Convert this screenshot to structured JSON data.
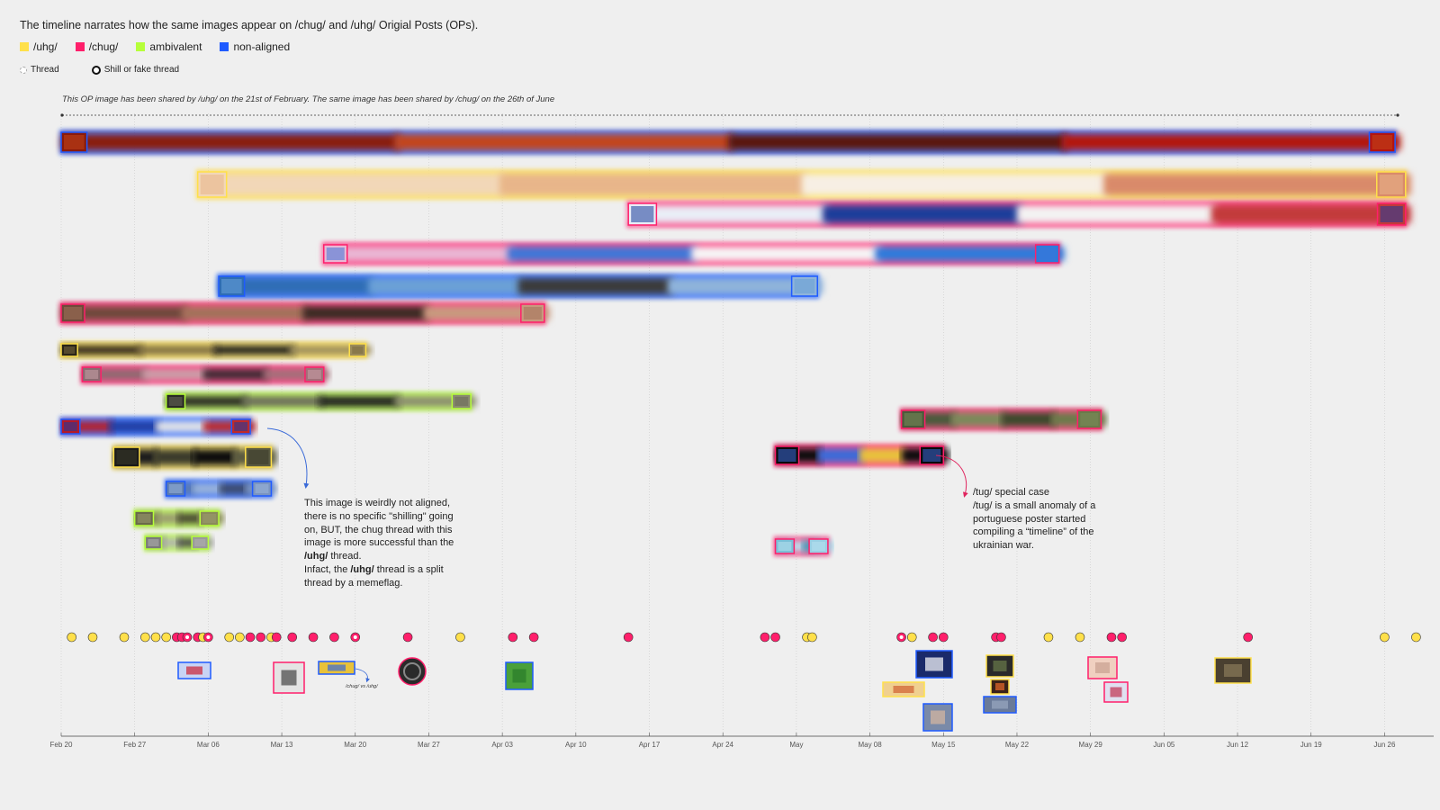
{
  "intro": "The timeline narrates how the same images appear on /chug/ and /uhg/ Origial Posts (OPs).",
  "legend": [
    {
      "label": "/uhg/",
      "color": "#ffe04a"
    },
    {
      "label": "/chug/",
      "color": "#ff1f6b"
    },
    {
      "label": "ambivalent",
      "color": "#b6ff3a"
    },
    {
      "label": "non-aligned",
      "color": "#1f5bff"
    }
  ],
  "thread_legend": {
    "thread": "Thread",
    "shill": "Shill or fake thread"
  },
  "caption": "This OP image has been shared by /uhg/ on the 21st of February. The same image has been shared by /chug/ on the 26th of June",
  "annotations": {
    "left_parts": [
      "This image is weirdly not aligned, there is no specific \"shilling\" going on, BUT, the chug thread with this image is more successful than the ",
      "/uhg/",
      " thread.\nInfact, the ",
      "/uhg/",
      " thread is a split thread by a memeflag."
    ],
    "right": "/tug/ special case\n/tug/ is a small anomaly of a portuguese poster started compiling a “timeline” of the ukrainian war.",
    "inline_label": "/chug/ vs /uhg/"
  },
  "chart_data": {
    "type": "timeline",
    "x_ticks": [
      "Feb 20",
      "Feb 27",
      "Mar 06",
      "Mar 13",
      "Mar 20",
      "Mar 27",
      "Apr 03",
      "Apr 10",
      "Apr 17",
      "Apr 24",
      "May",
      "May 08",
      "May 15",
      "May 22",
      "May 29",
      "Jun 05",
      "Jun 12",
      "Jun 19",
      "Jun 26"
    ],
    "colors": {
      "uhg": "#ffe04a",
      "chug": "#ff1f6b",
      "ambivalent": "#b6ff3a",
      "non_aligned": "#1f5bff"
    },
    "spans": [
      {
        "start_day": 0,
        "end_day": 127,
        "group": "non_aligned",
        "tones": [
          "#8a1a0a",
          "#c2451a",
          "#5a1208",
          "#b3140f"
        ]
      },
      {
        "start_day": 13,
        "end_day": 128,
        "group": "uhg",
        "tones": [
          "#f2d7b8",
          "#e8b58a",
          "#f7efe4",
          "#d98a6a"
        ]
      },
      {
        "start_day": 54,
        "end_day": 128,
        "group": "chug",
        "tones": [
          "#e9eef7",
          "#1a3c9a",
          "#f3f3f3",
          "#c23a3a"
        ]
      },
      {
        "start_day": 25,
        "end_day": 95,
        "group": "chug",
        "tones": [
          "#e9b7d4",
          "#3d77d8",
          "#f6f6f6",
          "#2b7bdc"
        ]
      },
      {
        "start_day": 15,
        "end_day": 72,
        "group": "non_aligned",
        "tones": [
          "#2e6db5",
          "#6aa0d6",
          "#3b3b3b",
          "#8fb4da"
        ]
      },
      {
        "start_day": 0,
        "end_day": 46,
        "group": "chug",
        "tones": [
          "#6e4a3a",
          "#a3725a",
          "#3a2a22",
          "#c79a7e"
        ]
      },
      {
        "start_day": 0,
        "end_day": 29,
        "group": "uhg",
        "tones": [
          "#2a2418",
          "#7a6a40",
          "#1a1a1a",
          "#9a8a5a"
        ]
      },
      {
        "start_day": 2,
        "end_day": 25,
        "group": "chug",
        "tones": [
          "#8a6a70",
          "#c8a0a8",
          "#3a2a30",
          "#a07078"
        ]
      },
      {
        "start_day": 10,
        "end_day": 39,
        "group": "ambivalent",
        "tones": [
          "#2a2a26",
          "#6a6a5a",
          "#1a1a1a",
          "#8a8a70"
        ]
      },
      {
        "start_day": 80,
        "end_day": 99,
        "group": "chug",
        "tones": [
          "#4a5a3a",
          "#7a8a5a",
          "#3a4a2a",
          "#6a7a4a"
        ]
      },
      {
        "start_day": 0,
        "end_day": 18,
        "group": "non_aligned",
        "tones": [
          "#b31a2a",
          "#1a3aa0",
          "#e6e6e6",
          "#c02a2a"
        ]
      },
      {
        "start_day": 5,
        "end_day": 20,
        "group": "uhg",
        "tones": [
          "#1a1a1a",
          "#3a3a2a",
          "#0a0a0a",
          "#5a5a40"
        ]
      },
      {
        "start_day": 68,
        "end_day": 84,
        "group": "chug",
        "tones": [
          "#0a0a0a",
          "#3a6ad8",
          "#e8c23a",
          "#0a0a0a"
        ]
      },
      {
        "start_day": 10,
        "end_day": 20,
        "group": "non_aligned",
        "tones": [
          "#5a7ab0",
          "#9ab4d8",
          "#3a4a6a",
          "#7a94c0"
        ]
      },
      {
        "start_day": 7,
        "end_day": 15,
        "group": "ambivalent",
        "tones": [
          "#6a6a4a",
          "#9a9a70",
          "#4a4a30",
          "#8a8a5a"
        ]
      },
      {
        "start_day": 8,
        "end_day": 14,
        "group": "ambivalent",
        "tones": [
          "#7a7a7a",
          "#b0b0b0",
          "#4a4a4a",
          "#9a9a9a"
        ]
      },
      {
        "start_day": 68,
        "end_day": 73,
        "group": "chug",
        "tones": [
          "#7ac0d8",
          "#b8e0ee",
          "#4a9ab8",
          "#9ad0e4"
        ]
      }
    ],
    "dots": [
      {
        "day": 1,
        "group": "uhg"
      },
      {
        "day": 3,
        "group": "uhg"
      },
      {
        "day": 6,
        "group": "uhg"
      },
      {
        "day": 8,
        "group": "uhg"
      },
      {
        "day": 9,
        "group": "uhg"
      },
      {
        "day": 10,
        "group": "uhg"
      },
      {
        "day": 11,
        "group": "chug"
      },
      {
        "day": 11.5,
        "group": "chug"
      },
      {
        "day": 12,
        "group": "chug",
        "shill": true
      },
      {
        "day": 13,
        "group": "chug"
      },
      {
        "day": 13.5,
        "group": "uhg"
      },
      {
        "day": 14,
        "group": "chug",
        "shill": true
      },
      {
        "day": 16,
        "group": "uhg"
      },
      {
        "day": 17,
        "group": "uhg"
      },
      {
        "day": 18,
        "group": "chug"
      },
      {
        "day": 19,
        "group": "chug"
      },
      {
        "day": 20,
        "group": "uhg"
      },
      {
        "day": 20.5,
        "group": "chug"
      },
      {
        "day": 22,
        "group": "chug"
      },
      {
        "day": 24,
        "group": "chug"
      },
      {
        "day": 26,
        "group": "chug"
      },
      {
        "day": 28,
        "group": "chug",
        "shill": true
      },
      {
        "day": 33,
        "group": "chug"
      },
      {
        "day": 38,
        "group": "uhg"
      },
      {
        "day": 43,
        "group": "chug"
      },
      {
        "day": 45,
        "group": "chug"
      },
      {
        "day": 54,
        "group": "chug"
      },
      {
        "day": 67,
        "group": "chug"
      },
      {
        "day": 68,
        "group": "chug"
      },
      {
        "day": 71,
        "group": "uhg"
      },
      {
        "day": 71.5,
        "group": "uhg"
      },
      {
        "day": 80,
        "group": "chug",
        "shill": true
      },
      {
        "day": 81,
        "group": "uhg"
      },
      {
        "day": 83,
        "group": "chug"
      },
      {
        "day": 84,
        "group": "chug"
      },
      {
        "day": 89,
        "group": "chug"
      },
      {
        "day": 89.5,
        "group": "chug"
      },
      {
        "day": 94,
        "group": "uhg"
      },
      {
        "day": 97,
        "group": "uhg"
      },
      {
        "day": 100,
        "group": "chug"
      },
      {
        "day": 101,
        "group": "chug"
      },
      {
        "day": 113,
        "group": "chug"
      },
      {
        "day": 126,
        "group": "uhg"
      },
      {
        "day": 129,
        "group": "uhg"
      }
    ]
  }
}
